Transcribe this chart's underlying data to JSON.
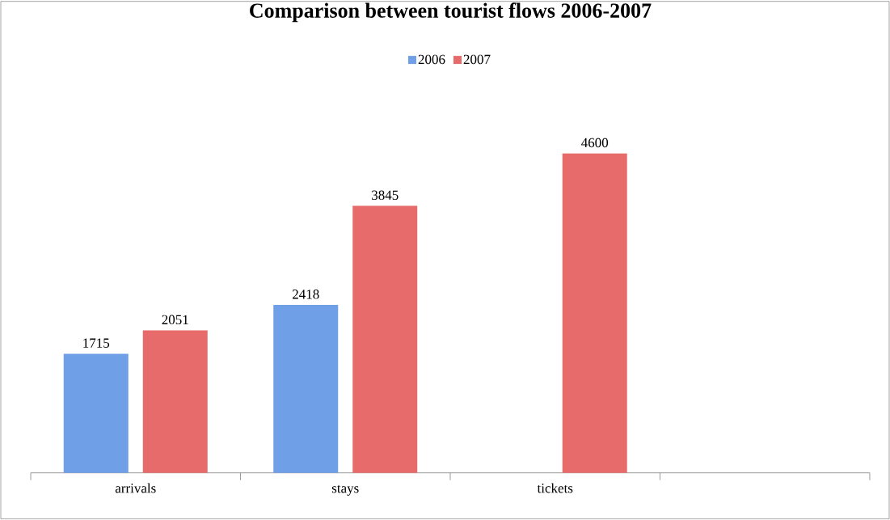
{
  "chart_data": {
    "type": "bar",
    "title": "Comparison between tourist flows 2006-2007",
    "categories": [
      "arrivals",
      "stays",
      "tickets",
      null
    ],
    "series": [
      {
        "name": "2006",
        "color": "#6f9fe6",
        "values": [
          1715,
          2418,
          null,
          null
        ]
      },
      {
        "name": "2007",
        "color": "#e86b6b",
        "values": [
          2051,
          3845,
          4600,
          null
        ]
      }
    ],
    "data_labels": true,
    "legend": "top"
  }
}
